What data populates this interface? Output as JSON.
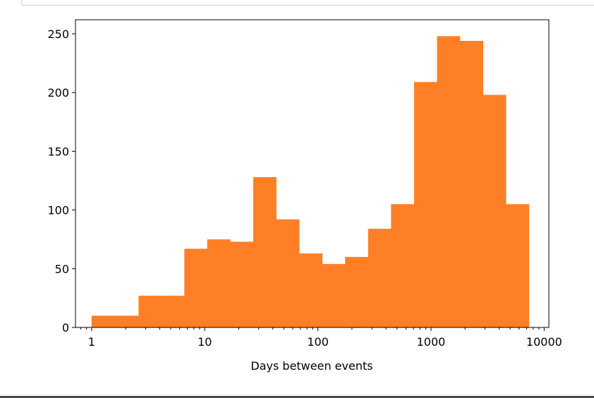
{
  "chart_data": {
    "type": "bar",
    "title": "",
    "xlabel": "Days between events",
    "ylabel": "",
    "x_scale": "log",
    "xlim": [
      0.72,
      11000
    ],
    "ylim": [
      0,
      262
    ],
    "grid": false,
    "bar_color": "#ff7f27",
    "bin_edges": [
      1,
      1.6,
      2.6,
      4.1,
      6.6,
      10.5,
      16.8,
      26.8,
      42.8,
      68.3,
      109,
      174,
      278,
      443,
      708,
      1130,
      1800,
      2880,
      4590,
      7330
    ],
    "values": [
      10,
      10,
      27,
      27,
      67,
      75,
      73,
      128,
      92,
      63,
      54,
      60,
      84,
      105,
      209,
      248,
      244,
      198,
      105
    ],
    "xticks": [
      1,
      10,
      100,
      1000,
      10000
    ],
    "xtick_labels": [
      "1",
      "10",
      "100",
      "1000",
      "10000"
    ],
    "yticks": [
      0,
      50,
      100,
      150,
      200,
      250
    ],
    "ytick_labels": [
      "0",
      "50",
      "100",
      "150",
      "200",
      "250"
    ]
  }
}
